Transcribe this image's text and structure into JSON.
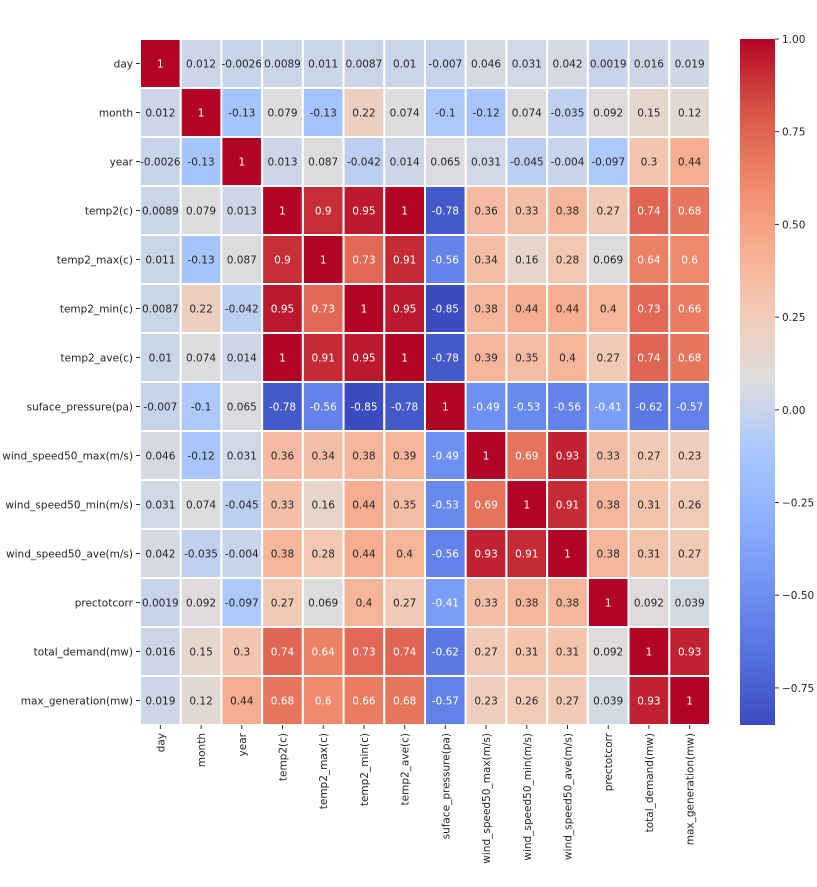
{
  "chart_data": {
    "type": "heatmap",
    "title": "",
    "labels": [
      "day",
      "month",
      "year",
      "temp2(c)",
      "temp2_max(c)",
      "temp2_min(c)",
      "temp2_ave(c)",
      "suface_pressure(pa)",
      "wind_speed50_max(m/s)",
      "wind_speed50_min(m/s)",
      "wind_speed50_ave(m/s)",
      "prectotcorr",
      "total_demand(mw)",
      "max_generation(mw)"
    ],
    "matrix": [
      [
        1,
        0.012,
        -0.0026,
        0.0089,
        0.011,
        0.0087,
        0.01,
        -0.007,
        0.046,
        0.031,
        0.042,
        0.0019,
        0.016,
        0.019
      ],
      [
        0.012,
        1,
        -0.13,
        0.079,
        -0.13,
        0.22,
        0.074,
        -0.1,
        -0.12,
        0.074,
        -0.035,
        0.092,
        0.15,
        0.12
      ],
      [
        -0.0026,
        -0.13,
        1,
        0.013,
        0.087,
        -0.042,
        0.014,
        0.065,
        0.031,
        -0.045,
        -0.004,
        -0.097,
        0.3,
        0.44
      ],
      [
        0.0089,
        0.079,
        0.013,
        1,
        0.9,
        0.95,
        1,
        -0.78,
        0.36,
        0.33,
        0.38,
        0.27,
        0.74,
        0.68
      ],
      [
        0.011,
        -0.13,
        0.087,
        0.9,
        1,
        0.73,
        0.91,
        -0.56,
        0.34,
        0.16,
        0.28,
        0.069,
        0.64,
        0.6
      ],
      [
        0.0087,
        0.22,
        -0.042,
        0.95,
        0.73,
        1,
        0.95,
        -0.85,
        0.38,
        0.44,
        0.44,
        0.4,
        0.73,
        0.66
      ],
      [
        0.01,
        0.074,
        0.014,
        1,
        0.91,
        0.95,
        1,
        -0.78,
        0.39,
        0.35,
        0.4,
        0.27,
        0.74,
        0.68
      ],
      [
        -0.007,
        -0.1,
        0.065,
        -0.78,
        -0.56,
        -0.85,
        -0.78,
        1,
        -0.49,
        -0.53,
        -0.56,
        -0.41,
        -0.62,
        -0.57
      ],
      [
        0.046,
        -0.12,
        0.031,
        0.36,
        0.34,
        0.38,
        0.39,
        -0.49,
        1,
        0.69,
        0.93,
        0.33,
        0.27,
        0.23
      ],
      [
        0.031,
        0.074,
        -0.045,
        0.33,
        0.16,
        0.44,
        0.35,
        -0.53,
        0.69,
        1,
        0.91,
        0.38,
        0.31,
        0.26
      ],
      [
        0.042,
        -0.035,
        -0.004,
        0.38,
        0.28,
        0.44,
        0.4,
        -0.56,
        0.93,
        0.91,
        1,
        0.38,
        0.31,
        0.27
      ],
      [
        0.0019,
        0.092,
        -0.097,
        0.27,
        0.069,
        0.4,
        0.27,
        -0.41,
        0.33,
        0.38,
        0.38,
        1,
        0.092,
        0.039
      ],
      [
        0.016,
        0.15,
        0.3,
        0.74,
        0.64,
        0.73,
        0.74,
        -0.62,
        0.27,
        0.31,
        0.31,
        0.092,
        1,
        0.93
      ],
      [
        0.019,
        0.12,
        0.44,
        0.68,
        0.6,
        0.66,
        0.68,
        -0.57,
        0.23,
        0.26,
        0.27,
        0.039,
        0.93,
        1
      ]
    ],
    "colormap": "coolwarm",
    "vmin": -0.85,
    "vmax": 1.0,
    "annotated": true,
    "colorbar": {
      "placement": "right",
      "ticks": [
        1.0,
        0.75,
        0.5,
        0.25,
        0.0,
        -0.25,
        -0.5,
        -0.75
      ],
      "tick_labels": [
        "1.00",
        "0.75",
        "0.50",
        "0.25",
        "0.00",
        "−0.25",
        "−0.50",
        "−0.75"
      ]
    }
  }
}
